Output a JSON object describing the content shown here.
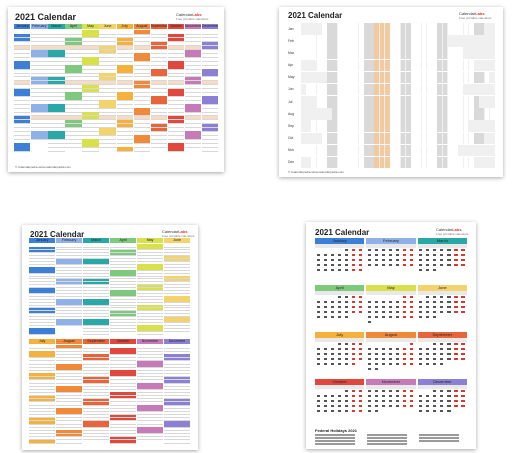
{
  "calendar_title": "2021 Calendar",
  "brand": {
    "name_a": "Calendar",
    "name_b": "Labs",
    "tagline": "Free printable calendars"
  },
  "months": [
    "January",
    "February",
    "March",
    "April",
    "May",
    "June",
    "July",
    "August",
    "September",
    "October",
    "November",
    "December"
  ],
  "month_labels_short": [
    "Jan",
    "Feb",
    "Mar",
    "Apr",
    "May",
    "Jun",
    "Jul",
    "Aug",
    "Sep",
    "Oct",
    "Nov",
    "Dec"
  ],
  "weekdays": [
    "Mo",
    "Tu",
    "We",
    "Th",
    "Fr",
    "Sa",
    "Su"
  ],
  "holidays_heading": "Federal Holidays 2021",
  "footer_text": "© Calendarpedia   www.calendarpedia.com",
  "colors": {
    "jan": "#3b7fd6",
    "feb": "#8fb0e8",
    "mar": "#2aa7a7",
    "apr": "#7fc97f",
    "may": "#d8e04a",
    "jun": "#f3d36b",
    "jul": "#f4b23c",
    "aug": "#f08a3a",
    "sep": "#e8643a",
    "oct": "#e0473d",
    "nov": "#c77ab8",
    "dec": "#8c7fd6",
    "weekend_shade": "#f3c9a0",
    "holiday_red": "#d43a2f"
  }
}
